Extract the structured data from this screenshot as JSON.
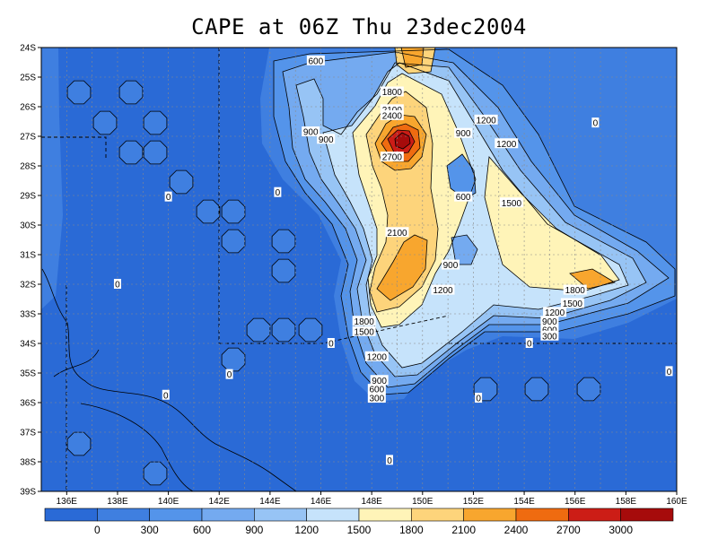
{
  "title": "CAPE at 06Z Thu 23dec2004",
  "map": {
    "lat_labels": [
      "24S",
      "25S",
      "26S",
      "27S",
      "28S",
      "29S",
      "30S",
      "31S",
      "32S",
      "33S",
      "34S",
      "35S",
      "36S",
      "37S",
      "38S",
      "39S"
    ],
    "lon_labels": [
      "136E",
      "138E",
      "140E",
      "142E",
      "144E",
      "146E",
      "148E",
      "150E",
      "152E",
      "154E",
      "156E",
      "158E",
      "160E"
    ],
    "contour_labels": [
      {
        "text": "600",
        "lon": 145.8,
        "lat": -24.45
      },
      {
        "text": "1800",
        "lon": 148.8,
        "lat": -25.5
      },
      {
        "text": "2100",
        "lon": 148.8,
        "lat": -26.1
      },
      {
        "text": "2400",
        "lon": 148.8,
        "lat": -26.3
      },
      {
        "text": "900",
        "lon": 145.6,
        "lat": -26.85
      },
      {
        "text": "900",
        "lon": 146.2,
        "lat": -27.1
      },
      {
        "text": "2700",
        "lon": 148.8,
        "lat": -27.7
      },
      {
        "text": "1200",
        "lon": 152.5,
        "lat": -26.45
      },
      {
        "text": "900",
        "lon": 151.6,
        "lat": -26.9
      },
      {
        "text": "1200",
        "lon": 153.3,
        "lat": -27.25
      },
      {
        "text": "0",
        "lon": 156.8,
        "lat": -26.55
      },
      {
        "text": "0",
        "lon": 140.0,
        "lat": -29.05
      },
      {
        "text": "0",
        "lon": 144.3,
        "lat": -28.9
      },
      {
        "text": "600",
        "lon": 151.6,
        "lat": -29.05
      },
      {
        "text": "1500",
        "lon": 153.5,
        "lat": -29.25
      },
      {
        "text": "2100",
        "lon": 149.0,
        "lat": -30.25
      },
      {
        "text": "900",
        "lon": 151.1,
        "lat": -31.35
      },
      {
        "text": "0",
        "lon": 138.0,
        "lat": -32.0
      },
      {
        "text": "1200",
        "lon": 150.8,
        "lat": -32.2
      },
      {
        "text": "1800",
        "lon": 156.0,
        "lat": -32.2
      },
      {
        "text": "1500",
        "lon": 155.9,
        "lat": -32.65
      },
      {
        "text": "1800",
        "lon": 147.7,
        "lat": -33.25
      },
      {
        "text": "1200",
        "lon": 155.2,
        "lat": -32.95
      },
      {
        "text": "1500",
        "lon": 147.7,
        "lat": -33.6
      },
      {
        "text": "900",
        "lon": 155.0,
        "lat": -33.25
      },
      {
        "text": "600",
        "lon": 155.0,
        "lat": -33.55
      },
      {
        "text": "300",
        "lon": 155.0,
        "lat": -33.75
      },
      {
        "text": "0",
        "lon": 146.4,
        "lat": -34.0
      },
      {
        "text": "0",
        "lon": 154.2,
        "lat": -34.0
      },
      {
        "text": "1200",
        "lon": 148.2,
        "lat": -34.45
      },
      {
        "text": "0",
        "lon": 142.4,
        "lat": -35.05
      },
      {
        "text": "0",
        "lon": 159.7,
        "lat": -34.95
      },
      {
        "text": "900",
        "lon": 148.3,
        "lat": -35.25
      },
      {
        "text": "600",
        "lon": 148.2,
        "lat": -35.55
      },
      {
        "text": "300",
        "lon": 148.2,
        "lat": -35.85
      },
      {
        "text": "0",
        "lon": 139.9,
        "lat": -35.75
      },
      {
        "text": "0",
        "lon": 152.2,
        "lat": -35.85
      },
      {
        "text": "0",
        "lon": 148.7,
        "lat": -37.95
      }
    ]
  },
  "colorbar": {
    "labels": [
      "0",
      "300",
      "600",
      "900",
      "1200",
      "1500",
      "1800",
      "2100",
      "2400",
      "2700",
      "3000"
    ],
    "colors": [
      "#2a6ad6",
      "#3f7fe0",
      "#5494ea",
      "#74aaf0",
      "#97c4f5",
      "#c6e3fb",
      "#fff4b8",
      "#fdd47b",
      "#f8a62e",
      "#ef6b10",
      "#cc1d16",
      "#a60b0b"
    ]
  }
}
